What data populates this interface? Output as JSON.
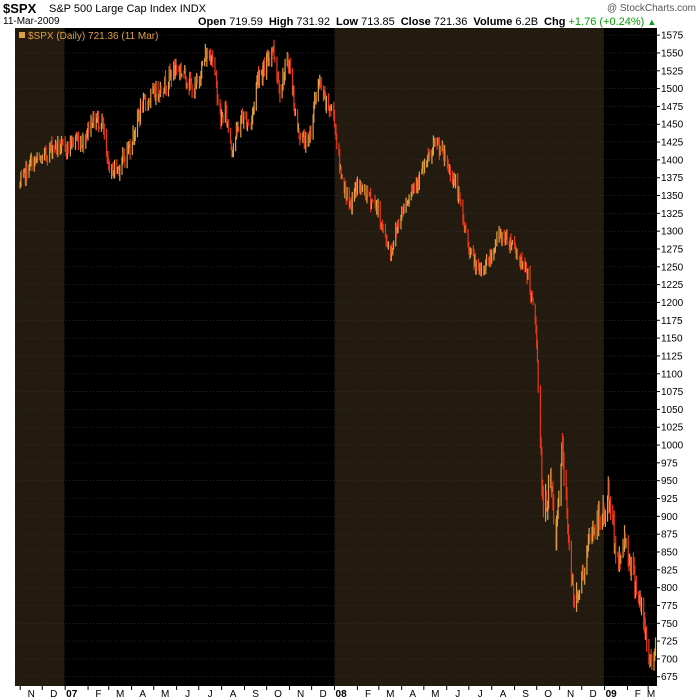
{
  "header": {
    "symbol": "$SPX",
    "description": "S&P 500 Large Cap Index",
    "exchange": "INDX",
    "date": "11-Mar-2009",
    "open_label": "Open",
    "open_value": "719.59",
    "high_label": "High",
    "high_value": "731.92",
    "low_label": "Low",
    "low_value": "713.85",
    "close_label": "Close",
    "close_value": "721.36",
    "volume_label": "Volume",
    "volume_value": "6.2B",
    "chg_label": "Chg",
    "chg_value": "+1.76 (+0.24%)",
    "credit": "@ StockCharts.com"
  },
  "legend": {
    "text": "$SPX (Daily) 721.36 (11 Mar)"
  },
  "colors": {
    "background": "#000000",
    "shade": "#231b0f",
    "up": "#e0a040",
    "down": "#e83818",
    "grid": "#3a3a3a",
    "axis_text": "#000000"
  },
  "chart_data": {
    "type": "line",
    "style": "daily high-low bars",
    "series": [
      {
        "name": "$SPX (Daily)",
        "x": [
          "2006-11-01",
          "2006-11-15",
          "2006-12-01",
          "2006-12-15",
          "2007-01-02",
          "2007-01-15",
          "2007-01-25",
          "2007-02-05",
          "2007-02-20",
          "2007-02-27",
          "2007-03-05",
          "2007-03-15",
          "2007-03-30",
          "2007-04-15",
          "2007-04-30",
          "2007-05-15",
          "2007-05-31",
          "2007-06-12",
          "2007-06-25",
          "2007-07-10",
          "2007-07-19",
          "2007-07-31",
          "2007-08-06",
          "2007-08-15",
          "2007-08-28",
          "2007-09-10",
          "2007-09-19",
          "2007-09-28",
          "2007-10-09",
          "2007-10-19",
          "2007-10-31",
          "2007-11-12",
          "2007-11-26",
          "2007-12-10",
          "2007-12-20",
          "2007-12-31",
          "2008-01-08",
          "2008-01-22",
          "2008-01-31",
          "2008-02-15",
          "2008-02-27",
          "2008-03-10",
          "2008-03-17",
          "2008-03-31",
          "2008-04-15",
          "2008-04-30",
          "2008-05-19",
          "2008-05-30",
          "2008-06-15",
          "2008-06-30",
          "2008-07-15",
          "2008-07-31",
          "2008-08-11",
          "2008-08-29",
          "2008-09-12",
          "2008-09-19",
          "2008-09-30",
          "2008-10-10",
          "2008-10-20",
          "2008-10-27",
          "2008-11-04",
          "2008-11-20",
          "2008-12-01",
          "2008-12-15",
          "2008-12-31",
          "2009-01-06",
          "2009-01-20",
          "2009-01-28",
          "2009-02-09",
          "2009-02-20",
          "2009-03-02",
          "2009-03-09",
          "2009-03-11"
        ],
        "y": [
          1365,
          1395,
          1400,
          1420,
          1415,
          1430,
          1425,
          1455,
          1455,
          1395,
          1385,
          1390,
          1420,
          1475,
          1490,
          1505,
          1530,
          1520,
          1495,
          1545,
          1550,
          1455,
          1470,
          1415,
          1460,
          1450,
          1520,
          1525,
          1560,
          1500,
          1540,
          1440,
          1420,
          1510,
          1480,
          1465,
          1390,
          1330,
          1365,
          1350,
          1335,
          1290,
          1270,
          1325,
          1360,
          1385,
          1425,
          1400,
          1360,
          1280,
          1240,
          1265,
          1295,
          1285,
          1250,
          1240,
          1165,
          900,
          950,
          860,
          1000,
          780,
          810,
          880,
          903,
          930,
          830,
          870,
          820,
          770,
          700,
          700,
          721
        ]
      }
    ],
    "x_ticks": [
      "N",
      "D",
      "07",
      "F",
      "M",
      "A",
      "M",
      "J",
      "J",
      "A",
      "S",
      "O",
      "N",
      "D",
      "08",
      "F",
      "M",
      "A",
      "M",
      "J",
      "J",
      "A",
      "S",
      "O",
      "N",
      "D",
      "09",
      "F",
      "M"
    ],
    "y_ticks": [
      675,
      700,
      725,
      750,
      775,
      800,
      825,
      850,
      875,
      900,
      925,
      950,
      975,
      1000,
      1025,
      1050,
      1075,
      1100,
      1125,
      1150,
      1175,
      1200,
      1225,
      1250,
      1275,
      1300,
      1325,
      1350,
      1375,
      1400,
      1425,
      1450,
      1475,
      1500,
      1525,
      1550,
      1575
    ],
    "ylim": [
      662,
      1585
    ],
    "xlim": [
      "2006-10-25",
      "2009-03-13"
    ],
    "shaded_spans": [
      [
        "2006-10-25",
        "2006-12-31"
      ],
      [
        "2008-01-01",
        "2008-12-31"
      ]
    ],
    "grid": true,
    "legend_position": "top-left"
  }
}
